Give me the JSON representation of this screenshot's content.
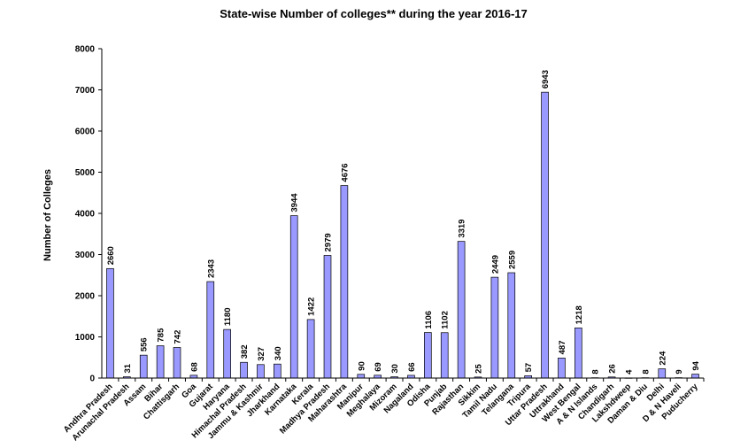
{
  "chart_data": {
    "type": "bar",
    "title": "State-wise Number of colleges** during the year 2016-17",
    "xlabel": "",
    "ylabel": "Number of Colleges",
    "ylim": [
      0,
      8000
    ],
    "yticks": [
      0,
      1000,
      2000,
      3000,
      4000,
      5000,
      6000,
      7000,
      8000
    ],
    "grid": false,
    "legend": "none",
    "bar_color": "#9999ff",
    "categories": [
      "Andhra Pradesh",
      "Arunachal Pradesh",
      "Assam",
      "Bihar",
      "Chattisgarh",
      "Goa",
      "Gujarat",
      "Haryana",
      "Himachal Pradesh",
      "Jammu & Kashmir",
      "Jharkhand",
      "Karnataka",
      "Kerala",
      "Madhya Pradesh",
      "Maharashtra",
      "Manipur",
      "Meghalaya",
      "Mizoram",
      "Nagaland",
      "Odisha",
      "Punjab",
      "Rajasthan",
      "Sikkim",
      "Tamil Nadu",
      "Telangana",
      "Tripura",
      "Uttar Pradesh",
      "Uttrakhand",
      "West Bengal",
      "A & N Islands",
      "Chandigarh",
      "Lakshdweep",
      "Daman & Diu",
      "Delhi",
      "D & N Haveli",
      "Puducherry"
    ],
    "values": [
      2660,
      31,
      556,
      785,
      742,
      68,
      2343,
      1180,
      382,
      327,
      340,
      3944,
      1422,
      2979,
      4676,
      90,
      69,
      30,
      66,
      1106,
      1102,
      3319,
      25,
      2449,
      2559,
      57,
      6943,
      487,
      1218,
      8,
      26,
      4,
      8,
      224,
      9,
      94
    ]
  }
}
